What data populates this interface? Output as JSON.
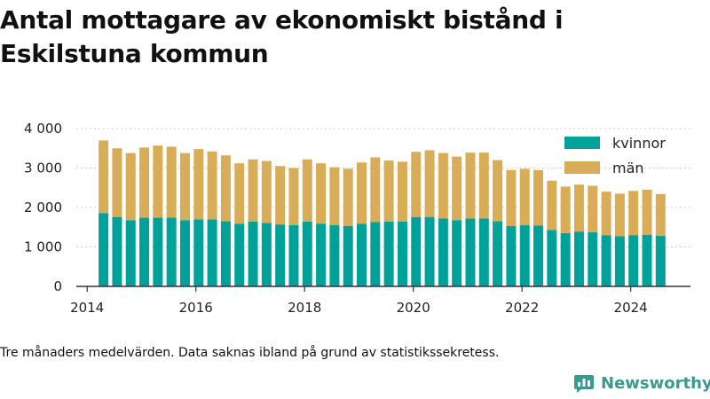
{
  "title": "Antal mottagare av ekonomiskt bistånd i Eskilstuna kommun",
  "caption": "Tre månaders medelvärden. Data saknas ibland på grund av statistikssekretess.",
  "brand": {
    "name": "Newsworthy",
    "icon": "newsworthy-logo-icon",
    "color": "#3a9a8f"
  },
  "colors": {
    "kvinnor": "#00a199",
    "man": "#d9ac58",
    "axis": "#333333",
    "grid": "#cccccc"
  },
  "chart_data": {
    "type": "bar",
    "stacked": true,
    "legend_position": "top-right",
    "grid": true,
    "x_ticks": [
      "2014",
      "2016",
      "2018",
      "2020",
      "2022",
      "2024"
    ],
    "y_ticks": [
      "0",
      "1 000",
      "2 000",
      "3 000",
      "4 000"
    ],
    "xlim": [
      2013.8,
      2025.1
    ],
    "ylim": [
      0,
      4000
    ],
    "x": [
      2014.3,
      2014.55,
      2014.8,
      2015.05,
      2015.3,
      2015.55,
      2015.8,
      2016.05,
      2016.3,
      2016.55,
      2016.8,
      2017.05,
      2017.3,
      2017.55,
      2017.8,
      2018.05,
      2018.3,
      2018.55,
      2018.8,
      2019.05,
      2019.3,
      2019.55,
      2019.8,
      2020.05,
      2020.3,
      2020.55,
      2020.8,
      2021.05,
      2021.3,
      2021.55,
      2021.8,
      2022.05,
      2022.3,
      2022.55,
      2022.8,
      2023.05,
      2023.3,
      2023.55,
      2023.8,
      2024.05,
      2024.3,
      2024.55
    ],
    "series": [
      {
        "name": "kvinnor",
        "values": [
          1860,
          1760,
          1680,
          1740,
          1740,
          1740,
          1680,
          1700,
          1700,
          1650,
          1590,
          1640,
          1610,
          1570,
          1550,
          1640,
          1590,
          1550,
          1530,
          1590,
          1630,
          1640,
          1640,
          1760,
          1760,
          1720,
          1680,
          1720,
          1720,
          1650,
          1530,
          1550,
          1540,
          1430,
          1350,
          1390,
          1370,
          1300,
          1270,
          1300,
          1310,
          1280
        ]
      },
      {
        "name": "män",
        "values": [
          1840,
          1740,
          1700,
          1780,
          1830,
          1800,
          1700,
          1780,
          1720,
          1670,
          1530,
          1580,
          1570,
          1480,
          1450,
          1580,
          1530,
          1470,
          1450,
          1550,
          1640,
          1550,
          1520,
          1650,
          1690,
          1660,
          1610,
          1670,
          1670,
          1550,
          1420,
          1430,
          1410,
          1250,
          1180,
          1190,
          1180,
          1100,
          1080,
          1120,
          1140,
          1060
        ]
      }
    ]
  }
}
